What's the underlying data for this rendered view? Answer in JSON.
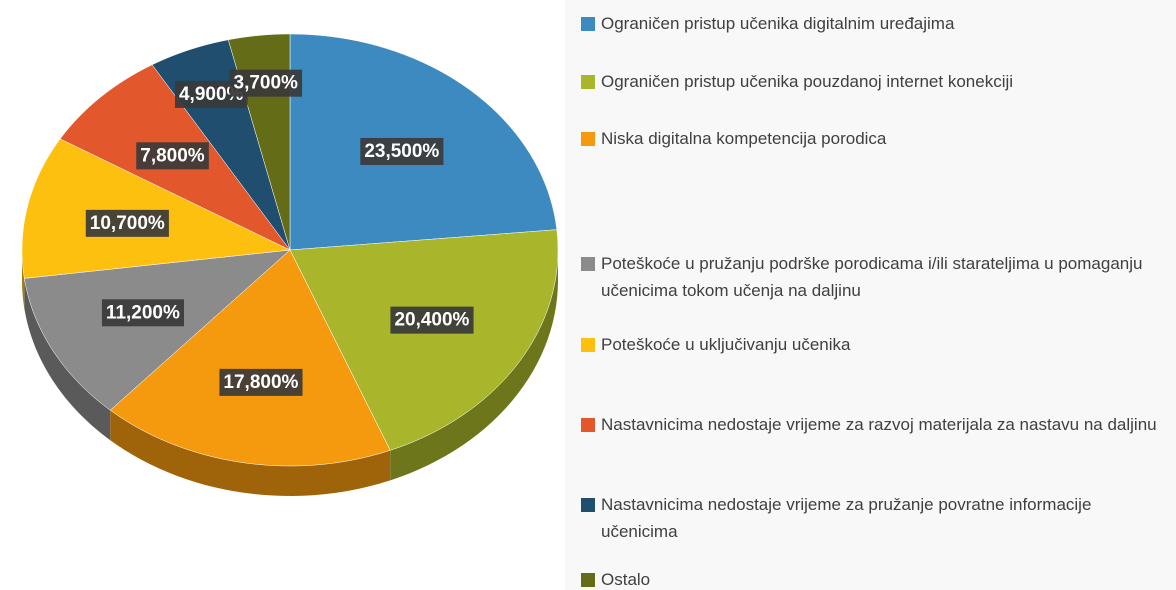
{
  "chart_data": {
    "type": "pie",
    "categories": [
      "Ograničen pristup učenika digitalnim uređajima",
      "Ograničen pristup učenika pouzdanoj internet konekciji",
      "Niska digitalna kompetencija porodica",
      "Poteškoće u pružanju podrške porodicama i/ili starateljima u pomaganju učenicima tokom učenja na daljinu",
      "Poteškoće u uključivanju učenika",
      "Nastavnicima nedostaje vrijeme za razvoj materijala za nastavu na daljinu",
      "Nastavnicima nedostaje vrijeme za pružanje povratne informacije učenicima",
      "Ostalo"
    ],
    "values": [
      23.5,
      20.4,
      17.8,
      11.2,
      10.7,
      7.8,
      4.9,
      3.7
    ],
    "value_labels": [
      "23,500%",
      "20,400%",
      "17,800%",
      "11,200%",
      "10,700%",
      "7,800%",
      "4,900%",
      "3,700%"
    ],
    "colors": [
      "#3d8ac0",
      "#a9b52b",
      "#f59a0e",
      "#8b8b8b",
      "#fec00f",
      "#e2572b",
      "#1f4e6e",
      "#646c17"
    ],
    "legend": "right"
  }
}
